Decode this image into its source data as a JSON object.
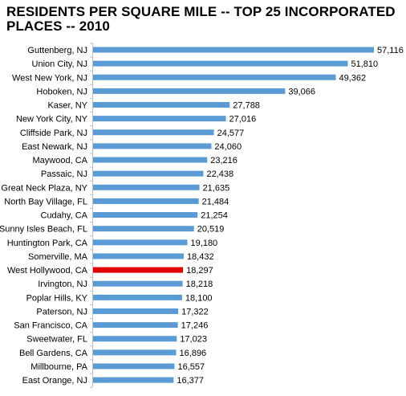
{
  "chart_data": {
    "type": "bar",
    "orientation": "horizontal",
    "title": "RESIDENTS PER SQUARE MILE -- TOP 25 INCORPORATED PLACES -- 2010",
    "categories": [
      "Guttenberg, NJ",
      "Union City, NJ",
      "West New York, NJ",
      "Hoboken, NJ",
      "Kaser, NY",
      "New York City, NY",
      "Cliffside Park, NJ",
      "East Newark, NJ",
      "Maywood, CA",
      "Passaic, NJ",
      "Great Neck Plaza, NY",
      "North Bay Village, FL",
      "Cudahy, CA",
      "Sunny Isles Beach, FL",
      "Huntington Park, CA",
      "Somerville, MA",
      "West Hollywood, CA",
      "Irvington, NJ",
      "Poplar Hills, KY",
      "Paterson, NJ",
      "San Francisco, CA",
      "Sweetwater, FL",
      "Bell Gardens, CA",
      "Millbourne, PA",
      "East Orange, NJ"
    ],
    "values": [
      57116,
      51810,
      49362,
      39066,
      27788,
      27016,
      24577,
      24060,
      23216,
      22438,
      21635,
      21484,
      21254,
      20519,
      19180,
      18432,
      18297,
      18218,
      18100,
      17322,
      17246,
      17023,
      16896,
      16557,
      16377
    ],
    "value_labels": [
      "57,116",
      "51,810",
      "49,362",
      "39,066",
      "27,788",
      "27,016",
      "24,577",
      "24,060",
      "23,216",
      "22,438",
      "21,635",
      "21,484",
      "21,254",
      "20,519",
      "19,180",
      "18,432",
      "18,297",
      "18,218",
      "18,100",
      "17,322",
      "17,246",
      "17,023",
      "16,896",
      "16,557",
      "16,377"
    ],
    "highlight_index": 16,
    "bar_color": "#5b9bd5",
    "highlight_color": "#e00000",
    "highlight_label_color": "#c00000",
    "axis_color": "#bfbfbf",
    "xlim": [
      0,
      57116
    ],
    "grid": false,
    "legend": "none"
  }
}
